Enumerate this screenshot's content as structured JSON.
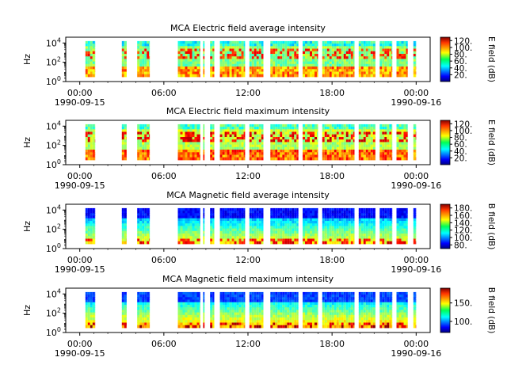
{
  "chart_data": [
    {
      "type": "heatmap",
      "title": "MCA  Electric field average intensity",
      "ylabel": "Hz",
      "colorbar_label": "E field (dB)",
      "colorbar_range": [
        0,
        130
      ],
      "colorbar_ticks": [
        "20.",
        "40.",
        "60.",
        "80.",
        "100.",
        "120."
      ],
      "colorbar_tick_values": [
        20,
        40,
        60,
        80,
        100,
        120
      ],
      "ylim_log10": [
        0,
        4.6
      ]
    },
    {
      "type": "heatmap",
      "title": "MCA  Electric field maximum intensity",
      "ylabel": "Hz",
      "colorbar_label": "E field (dB)",
      "colorbar_range": [
        0,
        130
      ],
      "colorbar_ticks": [
        "20.",
        "40.",
        "60.",
        "80.",
        "100.",
        "120."
      ],
      "colorbar_tick_values": [
        20,
        40,
        60,
        80,
        100,
        120
      ],
      "ylim_log10": [
        0,
        4.6
      ]
    },
    {
      "type": "heatmap",
      "title": "MCA  Magnetic field average intensity",
      "ylabel": "Hz",
      "colorbar_label": "B field (dB)",
      "colorbar_range": [
        70,
        190
      ],
      "colorbar_ticks": [
        "80.",
        "100.",
        "120.",
        "140.",
        "160.",
        "180."
      ],
      "colorbar_tick_values": [
        80,
        100,
        120,
        140,
        160,
        180
      ],
      "ylim_log10": [
        0,
        4.6
      ]
    },
    {
      "type": "heatmap",
      "title": "MCA  Magnetic field maximum intensity",
      "ylabel": "Hz",
      "colorbar_label": "B field (dB)",
      "colorbar_range": [
        70,
        190
      ],
      "colorbar_ticks": [
        "100.",
        "150."
      ],
      "colorbar_tick_values": [
        100,
        150
      ],
      "ylim_log10": [
        0,
        4.6
      ]
    }
  ],
  "axes": {
    "x_ticks": [
      "00:00",
      "06:00",
      "12:00",
      "18:00",
      "00:00"
    ],
    "x_tick_hours": [
      0,
      6,
      12,
      18,
      24
    ],
    "x_date_labels": [
      "1990-09-15",
      "1990-09-16"
    ],
    "x_date_hours": [
      0,
      24
    ],
    "xlim_hours": [
      -1,
      25
    ],
    "y_ticks": [
      "10^0",
      "10^2",
      "10^4"
    ],
    "y_tick_log10": [
      0,
      2,
      4
    ]
  },
  "data_segments_hours": [
    [
      0.4,
      1.1
    ],
    [
      3.0,
      3.35
    ],
    [
      4.1,
      5.0
    ],
    [
      7.0,
      8.6
    ],
    [
      8.8,
      8.9
    ],
    [
      9.3,
      9.6
    ],
    [
      10.0,
      11.8
    ],
    [
      12.1,
      13.1
    ],
    [
      13.6,
      15.6
    ],
    [
      15.9,
      17.0
    ],
    [
      17.3,
      19.6
    ],
    [
      19.9,
      21.1
    ],
    [
      21.4,
      22.3
    ],
    [
      22.6,
      23.4
    ],
    [
      23.8,
      24.0
    ]
  ]
}
